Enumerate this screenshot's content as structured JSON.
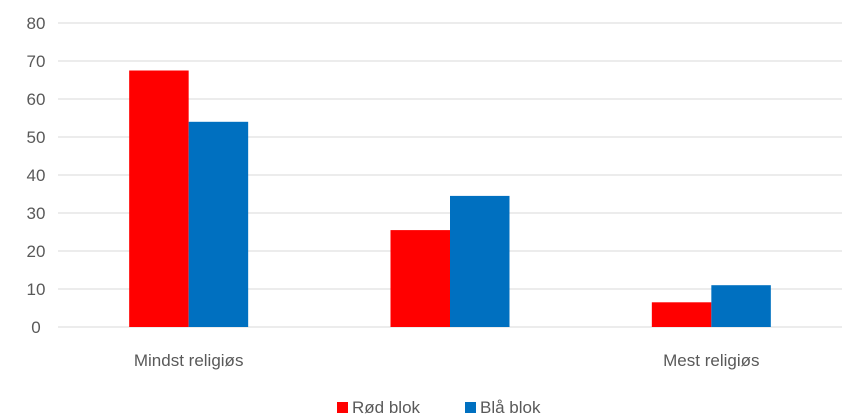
{
  "chart_data": {
    "type": "bar",
    "categories": [
      "Mindst religiøs",
      "",
      "Mest religiøs"
    ],
    "series": [
      {
        "name": "Rød blok",
        "color": "#ff0000",
        "values": [
          67.5,
          25.5,
          6.5
        ]
      },
      {
        "name": "Blå blok",
        "color": "#0070c0",
        "values": [
          54,
          34.5,
          11
        ]
      }
    ],
    "title": "",
    "xlabel": "",
    "ylabel": "",
    "ylim": [
      0,
      80
    ],
    "yticks": [
      0,
      10,
      20,
      30,
      40,
      50,
      60,
      70,
      80
    ],
    "grid": true,
    "legend_position": "bottom"
  }
}
